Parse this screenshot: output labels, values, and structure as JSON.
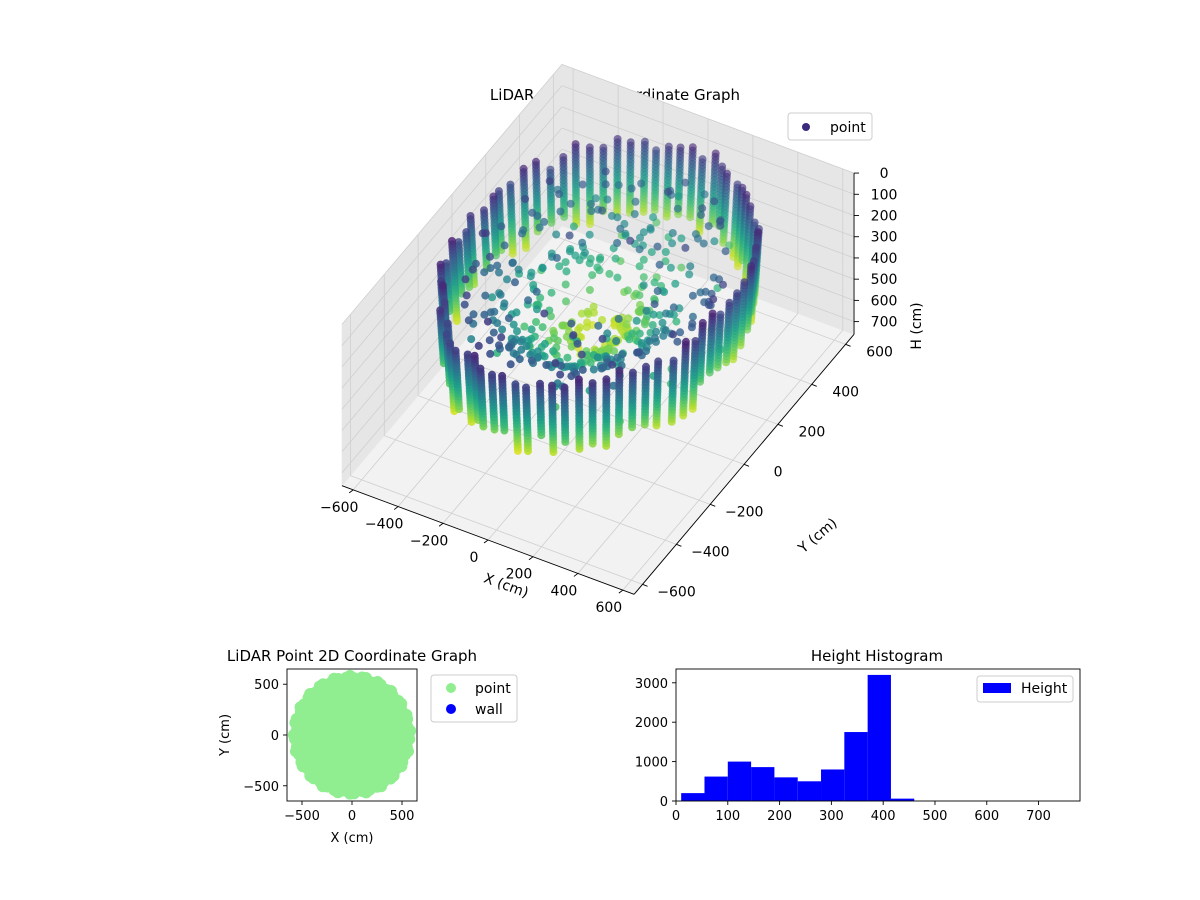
{
  "colors": {
    "pane": "#f2f2f2",
    "pane_dark": "#e6e6e6",
    "grid": "#cfcfcf",
    "point_2d": "#90ee90",
    "wall": "#0000ff",
    "hist": "#0000ff",
    "legend_point_3d": "#3b2b7a"
  },
  "chart_data": [
    {
      "type": "scatter",
      "title": "LiDAR Point 3D Coordinate Graph",
      "xlabel": "X (cm)",
      "ylabel": "Y (cm)",
      "zlabel": "H (cm)",
      "xlim": [
        -650,
        650
      ],
      "ylim": [
        -650,
        650
      ],
      "zlim": [
        0,
        760
      ],
      "z_inverted": true,
      "x_ticks": [
        "−600",
        "−400",
        "−200",
        "0",
        "200",
        "400",
        "600"
      ],
      "y_ticks": [
        "−600",
        "−400",
        "−200",
        "0",
        "200",
        "400",
        "600"
      ],
      "z_ticks": [
        "0",
        "100",
        "200",
        "300",
        "400",
        "500",
        "600",
        "700"
      ],
      "colormap": "viridis",
      "legend": [
        "point"
      ],
      "legend_position": "upper-right",
      "grid": true,
      "shape": "ring of vertical point columns (radius ≈ 550 cm, heights ≈ 0–420 cm) with a cone of points converging toward the center"
    },
    {
      "type": "scatter",
      "title": "LiDAR Point 2D Coordinate Graph",
      "xlabel": "X (cm)",
      "ylabel": "Y (cm)",
      "xlim": [
        -650,
        650
      ],
      "ylim": [
        -650,
        650
      ],
      "x_ticks": [
        "−500",
        "0",
        "500"
      ],
      "y_ticks": [
        "500",
        "0",
        "−500"
      ],
      "series": [
        {
          "name": "point",
          "color": "#90ee90",
          "shape": "filled disc, radius ≈ 580 cm"
        },
        {
          "name": "wall",
          "color": "#0000ff",
          "points": 0
        }
      ],
      "legend_position": "outside-right"
    },
    {
      "type": "bar",
      "title": "Height Histogram",
      "xlabel": "",
      "ylabel": "",
      "xlim": [
        0,
        780
      ],
      "ylim": [
        0,
        3350
      ],
      "x_ticks": [
        "0",
        "100",
        "200",
        "300",
        "400",
        "500",
        "600",
        "700"
      ],
      "y_ticks": [
        "0",
        "1000",
        "2000",
        "3000"
      ],
      "legend": [
        "Height"
      ],
      "legend_position": "upper-right",
      "bin_edges": [
        10,
        55,
        100,
        145,
        190,
        235,
        280,
        325,
        370,
        415,
        460
      ],
      "values": [
        200,
        620,
        1000,
        860,
        600,
        500,
        800,
        1750,
        3200,
        60
      ]
    }
  ]
}
